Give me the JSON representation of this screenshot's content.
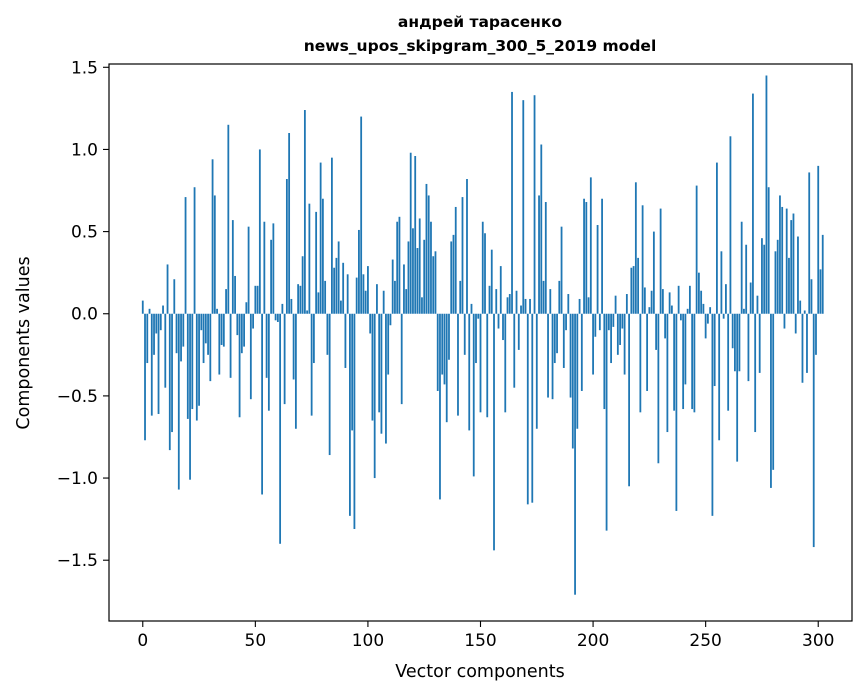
{
  "chart_data": {
    "type": "bar",
    "title_line1": "андрей тарасенко",
    "title_line2": "news_upos_skipgram_300_5_2019 model",
    "xlabel": "Vector components",
    "ylabel": "Components values",
    "xlim": [
      -15,
      315
    ],
    "ylim": [
      -1.87,
      1.52
    ],
    "xticks": [
      0,
      50,
      100,
      150,
      200,
      250,
      300
    ],
    "xtick_labels": [
      "0",
      "50",
      "100",
      "150",
      "200",
      "250",
      "300"
    ],
    "yticks": [
      -1.5,
      -1.0,
      -0.5,
      0.0,
      0.5,
      1.0,
      1.5
    ],
    "ytick_labels": [
      "−1.5",
      "−1.0",
      "−0.5",
      "0.0",
      "0.5",
      "1.0",
      "1.5"
    ],
    "bar_color": "#1f77b4",
    "grid": false,
    "values": [
      0.08,
      -0.77,
      -0.3,
      0.03,
      -0.62,
      -0.25,
      -0.12,
      -0.61,
      -0.1,
      0.05,
      -0.45,
      0.3,
      -0.83,
      -0.72,
      0.21,
      -0.24,
      -1.07,
      -0.29,
      -0.2,
      0.71,
      -0.64,
      -1.01,
      -0.58,
      0.77,
      -0.65,
      -0.56,
      -0.1,
      -0.3,
      -0.18,
      -0.25,
      -0.41,
      0.94,
      0.72,
      0.03,
      -0.37,
      -0.19,
      -0.2,
      0.15,
      1.15,
      -0.39,
      0.57,
      0.23,
      -0.13,
      -0.63,
      -0.24,
      -0.2,
      0.07,
      0.53,
      -0.52,
      -0.09,
      0.17,
      0.17,
      1.0,
      -1.1,
      0.56,
      -0.39,
      -0.59,
      0.45,
      0.55,
      -0.04,
      -0.05,
      -1.4,
      0.06,
      -0.55,
      0.82,
      1.1,
      0.09,
      -0.4,
      -0.7,
      0.18,
      0.17,
      0.35,
      1.24,
      0.02,
      0.67,
      -0.62,
      -0.3,
      0.62,
      0.13,
      0.92,
      0.7,
      0.2,
      -0.25,
      -0.86,
      0.95,
      0.28,
      0.34,
      0.44,
      0.08,
      0.31,
      -0.33,
      0.24,
      -1.23,
      -0.71,
      -1.31,
      0.22,
      0.51,
      1.2,
      0.24,
      0.14,
      0.29,
      -0.12,
      -0.65,
      -1.0,
      0.18,
      -0.6,
      -0.73,
      0.14,
      -0.79,
      -0.37,
      -0.07,
      0.33,
      0.2,
      0.56,
      0.59,
      -0.55,
      0.3,
      0.15,
      0.44,
      0.98,
      0.52,
      0.96,
      0.4,
      0.58,
      0.1,
      0.45,
      0.79,
      0.72,
      0.56,
      0.35,
      0.38,
      -0.47,
      -1.13,
      -0.37,
      -0.43,
      -0.66,
      -0.28,
      0.44,
      0.48,
      0.65,
      -0.62,
      0.2,
      0.71,
      -0.25,
      0.82,
      -0.71,
      0.06,
      -0.99,
      -0.3,
      -0.03,
      -0.6,
      0.56,
      0.49,
      -0.63,
      0.17,
      0.39,
      -1.44,
      0.15,
      -0.09,
      0.29,
      -0.16,
      -0.6,
      0.1,
      0.12,
      1.35,
      -0.45,
      0.14,
      -0.22,
      0.05,
      1.3,
      0.09,
      -1.16,
      0.09,
      -1.15,
      1.33,
      -0.7,
      0.72,
      1.03,
      0.2,
      0.68,
      -0.51,
      0.15,
      -0.52,
      -0.3,
      -0.24,
      0.2,
      0.53,
      -0.33,
      -0.1,
      0.12,
      -0.51,
      -0.82,
      -1.71,
      -0.7,
      0.09,
      -0.47,
      0.7,
      0.68,
      0.1,
      0.83,
      -0.37,
      -0.14,
      0.54,
      -0.1,
      0.7,
      -0.58,
      -1.32,
      -0.1,
      -0.3,
      -0.08,
      0.11,
      -0.25,
      -0.19,
      -0.09,
      -0.37,
      0.12,
      -1.05,
      0.28,
      0.29,
      0.8,
      0.34,
      -0.6,
      0.66,
      0.16,
      -0.47,
      0.04,
      0.14,
      0.5,
      -0.22,
      -0.91,
      0.64,
      0.15,
      -0.15,
      -0.72,
      0.13,
      0.05,
      -0.59,
      -1.2,
      0.17,
      -0.04,
      -0.58,
      -0.43,
      0.03,
      0.17,
      -0.58,
      -0.6,
      0.78,
      0.25,
      0.14,
      0.06,
      -0.15,
      -0.06,
      0.04,
      -1.23,
      -0.44,
      0.92,
      -0.77,
      0.38,
      -0.03,
      0.18,
      -0.59,
      1.08,
      -0.21,
      -0.35,
      -0.9,
      -0.35,
      0.56,
      0.03,
      0.42,
      -0.41,
      0.19,
      1.34,
      -0.72,
      0.11,
      -0.36,
      0.46,
      0.42,
      1.45,
      0.77,
      -1.06,
      -0.95,
      0.38,
      0.45,
      0.72,
      0.65,
      -0.09,
      0.64,
      0.34,
      0.57,
      0.61,
      -0.12,
      0.47,
      0.08,
      -0.42,
      0.02,
      -0.36,
      0.86,
      0.21,
      -1.42,
      -0.25,
      0.9,
      0.27,
      0.48
    ]
  }
}
